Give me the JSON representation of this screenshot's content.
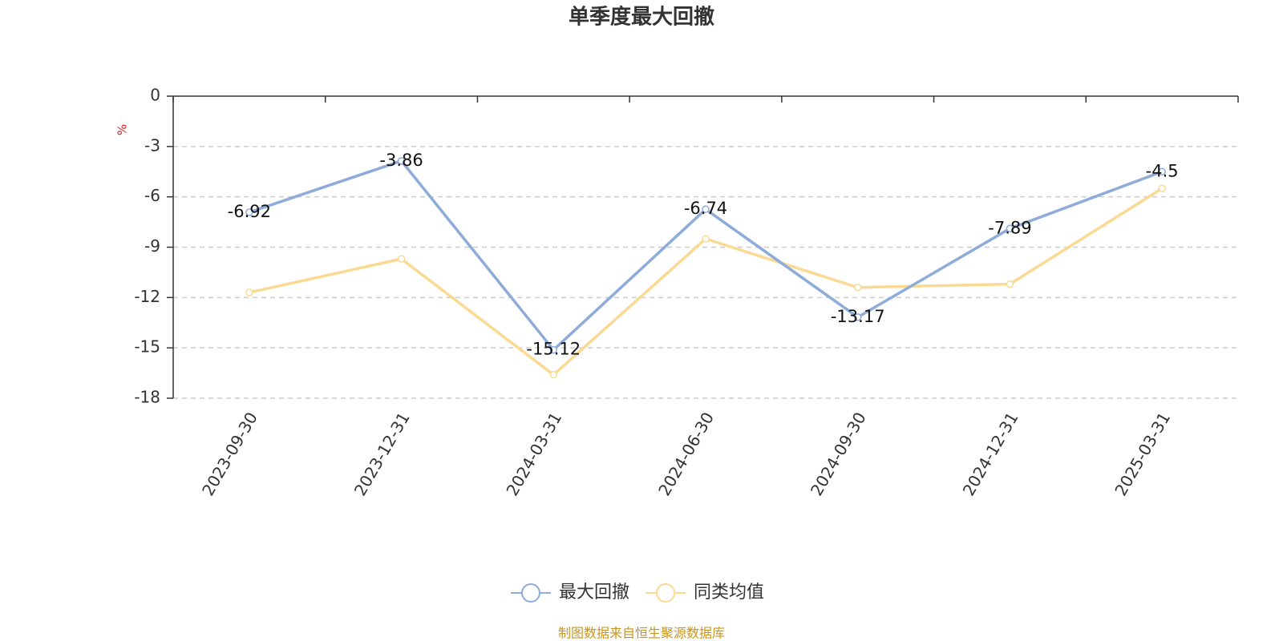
{
  "chart_data": {
    "type": "line",
    "title": "单季度最大回撤",
    "y_label": "%",
    "categories": [
      "2023-09-30",
      "2023-12-31",
      "2024-03-31",
      "2024-06-30",
      "2024-09-30",
      "2024-12-31",
      "2025-03-31"
    ],
    "series": [
      {
        "name": "最大回撤",
        "color": "#8eacd9",
        "values": [
          -6.92,
          -3.86,
          -15.12,
          -6.74,
          -13.17,
          -7.89,
          -4.5
        ],
        "show_labels": true
      },
      {
        "name": "同类均值",
        "color": "#fad993",
        "values": [
          -11.7,
          -9.7,
          -16.6,
          -8.5,
          -11.4,
          -11.2,
          -5.5
        ],
        "show_labels": false
      }
    ],
    "ylim": [
      -18,
      0
    ],
    "yticks": [
      0,
      -3,
      -6,
      -9,
      -12,
      -15,
      -18
    ],
    "grid": true,
    "source": "制图数据来自恒生聚源数据库"
  }
}
